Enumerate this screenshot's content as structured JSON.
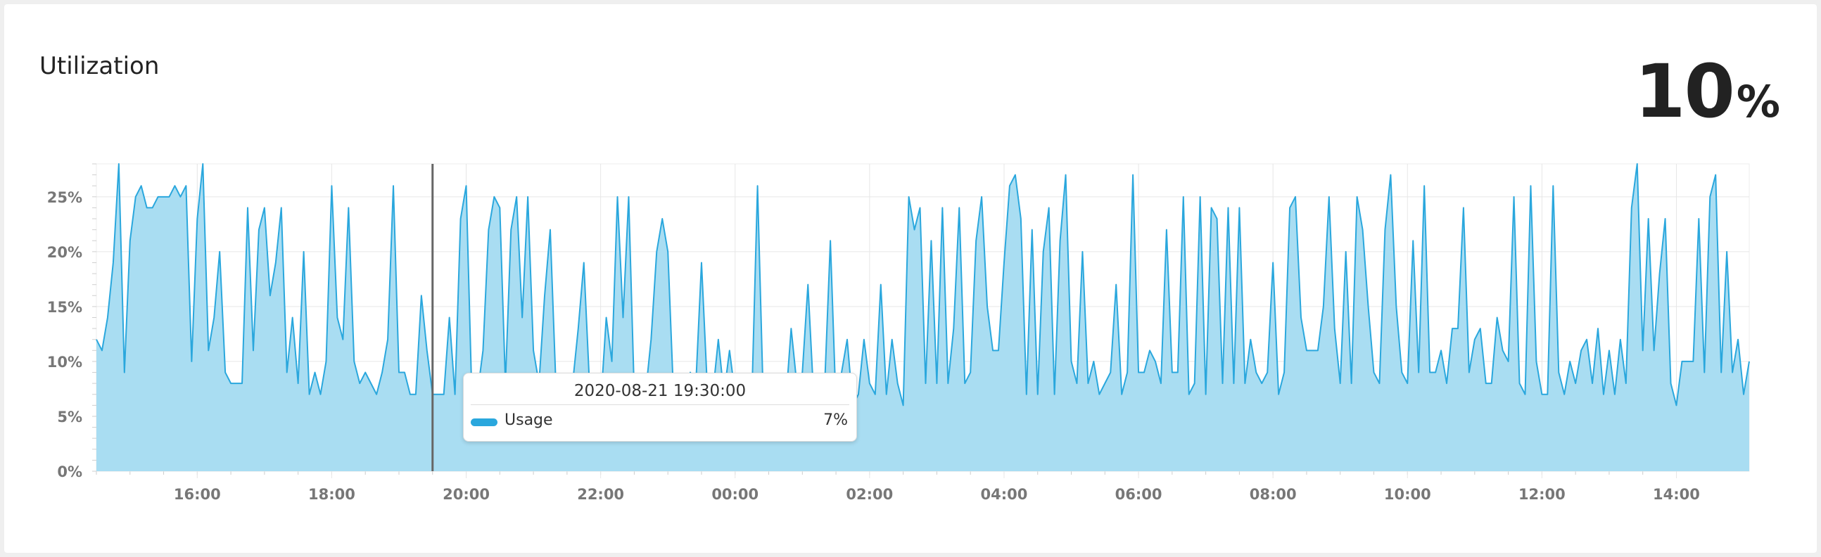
{
  "header": {
    "title": "Utilization",
    "current_value": "10",
    "current_unit": "%"
  },
  "tooltip": {
    "time": "2020-08-21 19:30:00",
    "series_name": "Usage",
    "value": "7%"
  },
  "colors": {
    "line": "#2aa7dd",
    "fill": "#a9ddf2",
    "cursor": "#666666"
  },
  "chart_data": {
    "type": "area",
    "title": "Utilization",
    "xlabel": "",
    "ylabel": "",
    "x_start": "14:30",
    "x_end": "14:30",
    "x_step_minutes": 5,
    "x_ticks": [
      "16:00",
      "18:00",
      "20:00",
      "22:00",
      "00:00",
      "02:00",
      "04:00",
      "06:00",
      "08:00",
      "10:00",
      "12:00",
      "14:00"
    ],
    "y_ticks": [
      "0%",
      "5%",
      "10%",
      "15%",
      "20%",
      "25%"
    ],
    "ylim": [
      0,
      28
    ],
    "grid": true,
    "legend": "none",
    "cursor_time": "19:30",
    "series": [
      {
        "name": "Usage",
        "values": [
          12,
          11,
          14,
          19,
          28,
          9,
          21,
          25,
          26,
          24,
          24,
          25,
          25,
          25,
          26,
          25,
          26,
          10,
          23,
          28,
          11,
          14,
          20,
          9,
          8,
          8,
          8,
          24,
          11,
          22,
          24,
          16,
          19,
          24,
          9,
          14,
          8,
          20,
          7,
          9,
          7,
          10,
          26,
          14,
          12,
          24,
          10,
          8,
          9,
          8,
          7,
          9,
          12,
          26,
          9,
          9,
          7,
          7,
          16,
          11,
          7,
          7,
          7,
          14,
          7,
          23,
          26,
          7,
          7,
          11,
          22,
          25,
          24,
          8,
          22,
          25,
          14,
          25,
          11,
          8,
          16,
          22,
          8,
          8,
          6,
          8,
          13,
          19,
          8,
          7,
          6,
          14,
          10,
          25,
          14,
          25,
          7,
          7,
          7,
          12,
          20,
          23,
          20,
          7,
          7,
          7,
          9,
          8,
          19,
          8,
          7,
          12,
          7,
          11,
          7,
          6,
          6,
          7,
          26,
          7,
          8,
          8,
          7,
          6,
          13,
          8,
          9,
          17,
          7,
          7,
          8,
          21,
          6,
          9,
          12,
          6,
          7,
          12,
          8,
          7,
          17,
          7,
          12,
          8,
          6,
          25,
          22,
          24,
          8,
          21,
          8,
          24,
          8,
          13,
          24,
          8,
          9,
          21,
          25,
          15,
          11,
          11,
          19,
          26,
          27,
          23,
          7,
          22,
          7,
          20,
          24,
          7,
          21,
          27,
          10,
          8,
          20,
          8,
          10,
          7,
          8,
          9,
          17,
          7,
          9,
          27,
          9,
          9,
          11,
          10,
          8,
          22,
          9,
          9,
          25,
          7,
          8,
          25,
          7,
          24,
          23,
          8,
          24,
          8,
          24,
          8,
          12,
          9,
          8,
          9,
          19,
          7,
          9,
          24,
          25,
          14,
          11,
          11,
          11,
          15,
          25,
          13,
          8,
          20,
          8,
          25,
          22,
          15,
          9,
          8,
          22,
          27,
          15,
          9,
          8,
          21,
          9,
          26,
          9,
          9,
          11,
          8,
          13,
          13,
          24,
          9,
          12,
          13,
          8,
          8,
          14,
          11,
          10,
          25,
          8,
          7,
          26,
          10,
          7,
          7,
          26,
          9,
          7,
          10,
          8,
          11,
          12,
          8,
          13,
          7,
          11,
          7,
          12,
          8,
          24,
          28,
          11,
          23,
          11,
          18,
          23,
          8,
          6,
          10,
          10,
          10,
          23,
          9,
          25,
          27,
          9,
          20,
          9,
          12,
          7,
          10
        ]
      }
    ]
  }
}
